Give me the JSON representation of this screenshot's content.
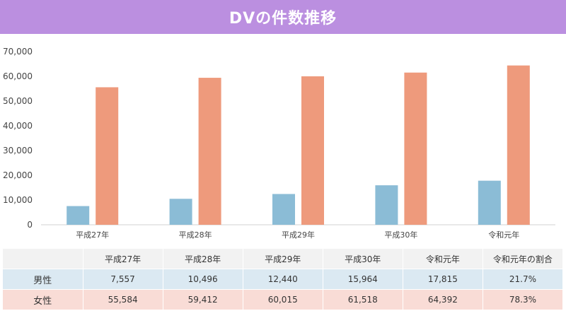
{
  "colors": {
    "title_bg": "#bb8fe0",
    "male": "#8bbcd6",
    "female": "#ee9a7c",
    "axis": "#d0d0d0"
  },
  "chart_data": {
    "type": "bar",
    "title": "DVの件数推移",
    "categories": [
      "平成27年",
      "平成28年",
      "平成29年",
      "平成30年",
      "令和元年"
    ],
    "series": [
      {
        "name": "男性",
        "values": [
          7557,
          10496,
          12440,
          15964,
          17815
        ]
      },
      {
        "name": "女性",
        "values": [
          55584,
          59412,
          60015,
          61518,
          64392
        ]
      }
    ],
    "ylim": [
      0,
      70000
    ],
    "yticks": [
      "0",
      "10,000",
      "20,000",
      "30,000",
      "40,000",
      "50,000",
      "60,000",
      "70,000"
    ],
    "grid": false,
    "xlabel": "",
    "ylabel": ""
  },
  "table": {
    "headers": [
      "",
      "平成27年",
      "平成28年",
      "平成29年",
      "平成30年",
      "令和元年",
      "令和元年の割合"
    ],
    "rows": [
      {
        "label": "男性",
        "cells": [
          "7,557",
          "10,496",
          "12,440",
          "15,964",
          "17,815",
          "21.7%"
        ]
      },
      {
        "label": "女性",
        "cells": [
          "55,584",
          "59,412",
          "60,015",
          "61,518",
          "64,392",
          "78.3%"
        ]
      }
    ]
  }
}
